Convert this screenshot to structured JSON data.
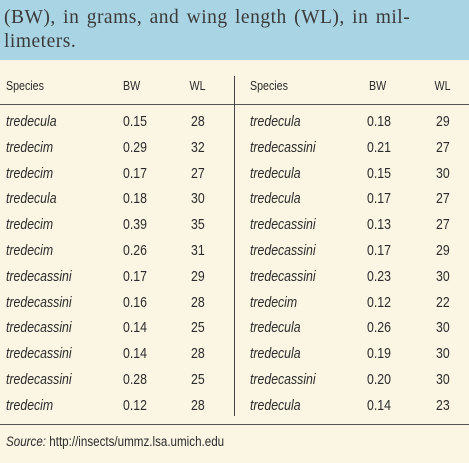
{
  "caption": "(BW), in grams, and wing length (WL), in millimeters.",
  "caption_lines": [
    "(BW), in grams, and wing length (WL), in mil-",
    "limeters."
  ],
  "headers": {
    "left": [
      "Species",
      "BW",
      "WL"
    ],
    "right": [
      "Species",
      "BW",
      "WL"
    ]
  },
  "left_rows": [
    [
      "tredecula",
      "0.15",
      "28"
    ],
    [
      "tredecim",
      "0.29",
      "32"
    ],
    [
      "tredecim",
      "0.17",
      "27"
    ],
    [
      "tredecula",
      "0.18",
      "30"
    ],
    [
      "tredecim",
      "0.39",
      "35"
    ],
    [
      "tredecim",
      "0.26",
      "31"
    ],
    [
      "tredecassini",
      "0.17",
      "29"
    ],
    [
      "tredecassini",
      "0.16",
      "28"
    ],
    [
      "tredecassini",
      "0.14",
      "25"
    ],
    [
      "tredecassini",
      "0.14",
      "28"
    ],
    [
      "tredecassini",
      "0.28",
      "25"
    ],
    [
      "tredecim",
      "0.12",
      "28"
    ]
  ],
  "right_rows": [
    [
      "tredecula",
      "0.18",
      "29"
    ],
    [
      "tredecassini",
      "0.21",
      "27"
    ],
    [
      "tredecula",
      "0.15",
      "30"
    ],
    [
      "tredecula",
      "0.17",
      "27"
    ],
    [
      "tredecassini",
      "0.13",
      "27"
    ],
    [
      "tredecassini",
      "0.17",
      "29"
    ],
    [
      "tredecassini",
      "0.23",
      "30"
    ],
    [
      "tredecim",
      "0.12",
      "22"
    ],
    [
      "tredecula",
      "0.26",
      "30"
    ],
    [
      "tredecula",
      "0.19",
      "30"
    ],
    [
      "tredecassini",
      "0.20",
      "30"
    ],
    [
      "tredecula",
      "0.14",
      "23"
    ]
  ],
  "source": {
    "label": "Source:",
    "url": "http://insects/ummz.lsa.umich.edu"
  },
  "colors": {
    "caption_band": "#a9d4e3",
    "table_background": "#fbf6e3"
  }
}
